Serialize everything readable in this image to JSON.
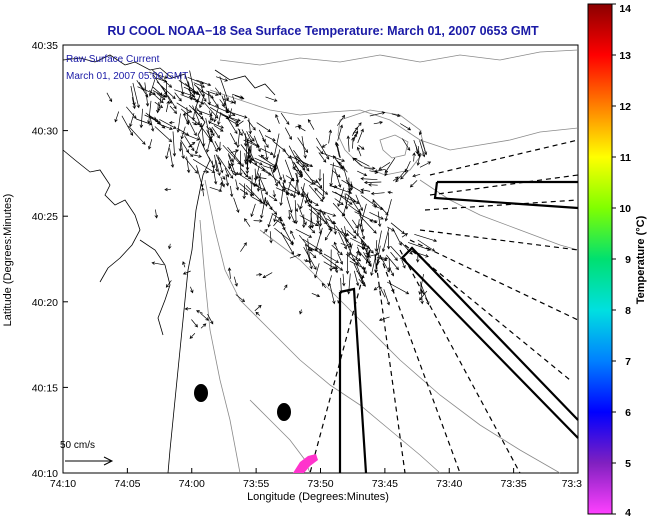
{
  "title": "RU COOL  NOAA−18  Sea Surface Temperature:  March 01, 2007 0653 GMT",
  "legend": {
    "line1": "Raw Surface Current",
    "line2": "March 01, 2007 05:00 GMT",
    "scale_label": "50 cm/s",
    "color": "#1a1aa6"
  },
  "axes": {
    "xlabel": "Longitude (Degrees:Minutes)",
    "ylabel": "Latitude (Degrees:Minutes)",
    "x_ticks": [
      "74:10",
      "74:05",
      "74:00",
      "73:55",
      "73:50",
      "73:45",
      "73:40",
      "73:35",
      "73:3"
    ],
    "y_ticks": [
      "40:35",
      "40:30",
      "40:25",
      "40:20",
      "40:15",
      "40:10"
    ]
  },
  "colorbar": {
    "label": "Temperature (°C)",
    "min": 4,
    "max": 14,
    "ticks": [
      "14",
      "13",
      "12",
      "11",
      "10",
      "9",
      "8",
      "7",
      "6",
      "5",
      "4"
    ],
    "stops": [
      "#8b0000",
      "#ff0000",
      "#ff8000",
      "#ffff00",
      "#80ff00",
      "#00e070",
      "#00e0e0",
      "#0080ff",
      "#0000ff",
      "#8020c0",
      "#ff40ff"
    ]
  },
  "title_color": "#1a1aa6"
}
